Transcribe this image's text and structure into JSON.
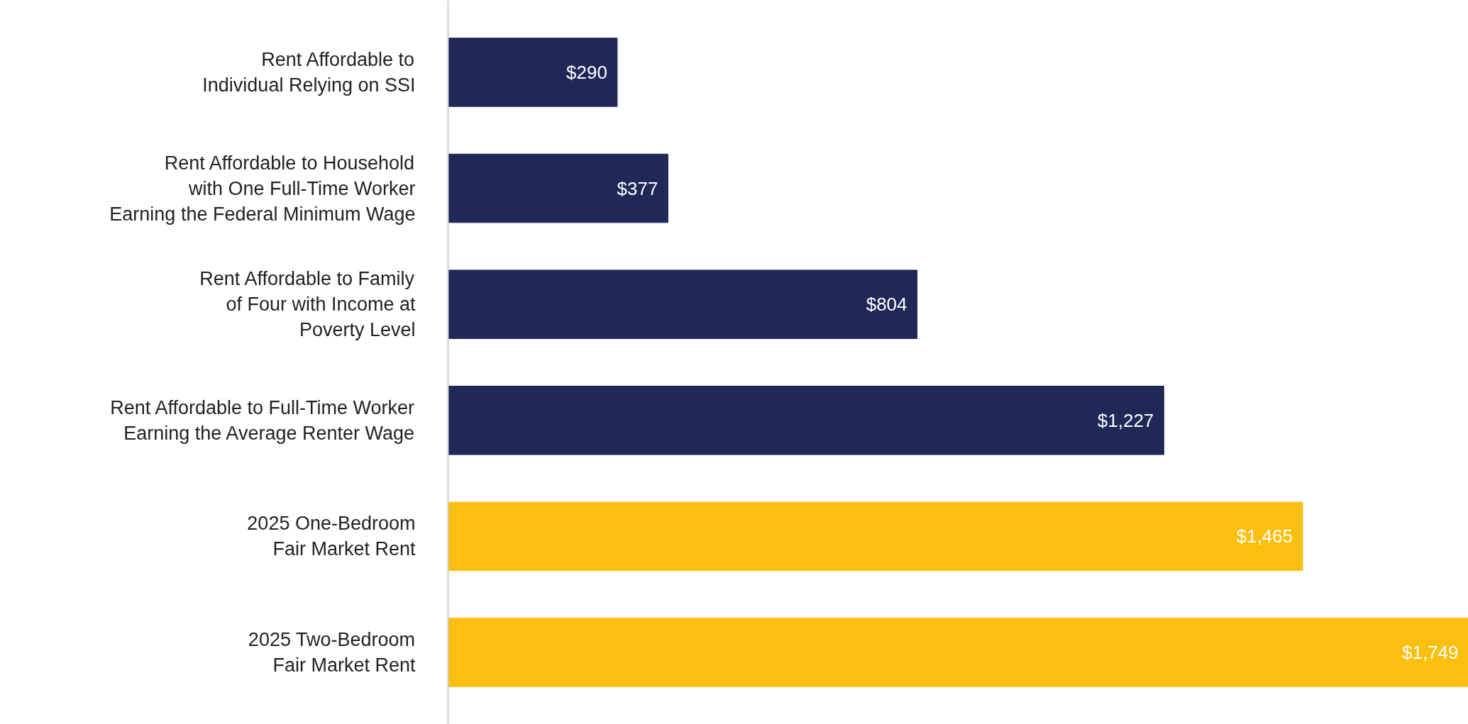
{
  "chart_data": {
    "type": "bar",
    "orientation": "horizontal",
    "categories": [
      "Rent Affordable to\nIndividual Relying on SSI",
      "Rent Affordable to Household\nwith One Full-Time Worker\nEarning the Federal Minimum Wage",
      "Rent Affordable to Family\nof Four with Income at\nPoverty Level",
      "Rent Affordable to Full-Time Worker\nEarning the Average Renter Wage",
      "2025 One-Bedroom\nFair Market Rent",
      "2025 Two-Bedroom\nFair Market Rent"
    ],
    "values": [
      290,
      377,
      804,
      1227,
      1465,
      1749
    ],
    "colors": [
      "#1f2857",
      "#1f2857",
      "#1f2857",
      "#1f2857",
      "#fbbf0f",
      "#fbbf0f"
    ],
    "value_labels": [
      "$290",
      "$377",
      "$804",
      "$1,227",
      "$1,465",
      "$1,749"
    ],
    "grid": false
  }
}
